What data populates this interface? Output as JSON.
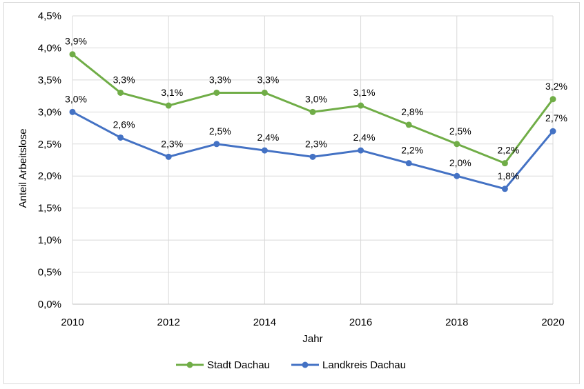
{
  "chart_data": {
    "type": "line",
    "x": [
      2010,
      2011,
      2012,
      2013,
      2014,
      2015,
      2016,
      2017,
      2018,
      2019,
      2020
    ],
    "xticks": [
      2010,
      2012,
      2014,
      2016,
      2018,
      2020
    ],
    "xlim": [
      2010,
      2020
    ],
    "ylim": [
      0,
      4.5
    ],
    "yticks": [
      "0,0%",
      "0,5%",
      "1,0%",
      "1,5%",
      "2,0%",
      "2,5%",
      "3,0%",
      "3,5%",
      "4,0%",
      "4,5%"
    ],
    "ytick_values": [
      0,
      0.5,
      1.0,
      1.5,
      2.0,
      2.5,
      3.0,
      3.5,
      4.0,
      4.5
    ],
    "xlabel": "Jahr",
    "ylabel": "Anteil Arbeitslose",
    "grid": "horizontal and vertical",
    "legend_position": "bottom",
    "series": [
      {
        "name": "Stadt Dachau",
        "color": "#70ad47",
        "values": [
          3.9,
          3.3,
          3.1,
          3.3,
          3.3,
          3.0,
          3.1,
          2.8,
          2.5,
          2.2,
          3.2
        ],
        "labels": [
          "3,9%",
          "3,3%",
          "3,1%",
          "3,3%",
          "3,3%",
          "3,0%",
          "3,1%",
          "2,8%",
          "2,5%",
          "2,2%",
          "3,2%"
        ]
      },
      {
        "name": "Landkreis Dachau",
        "color": "#4472c4",
        "values": [
          3.0,
          2.6,
          2.3,
          2.5,
          2.4,
          2.3,
          2.4,
          2.2,
          2.0,
          1.8,
          2.7
        ],
        "labels": [
          "3,0%",
          "2,6%",
          "2,3%",
          "2,5%",
          "2,4%",
          "2,3%",
          "2,4%",
          "2,2%",
          "2,0%",
          "1,8%",
          "2,7%"
        ]
      }
    ]
  }
}
